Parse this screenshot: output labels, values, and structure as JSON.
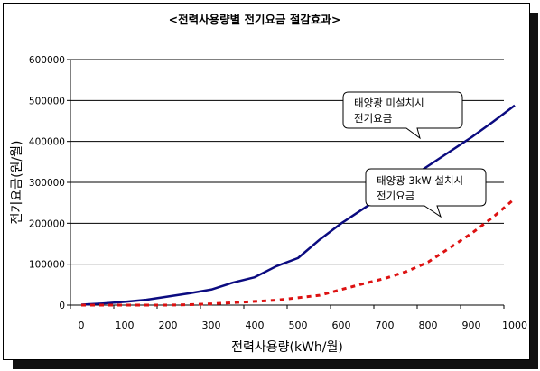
{
  "chart_data": {
    "type": "line",
    "title": "<전력사용량별 전기요금 절감효과>",
    "xlabel": "전력사용량(kWh/월)",
    "ylabel": "전기요금(원/월)",
    "xlim": [
      0,
      1000
    ],
    "ylim": [
      0,
      600000
    ],
    "x_ticks": [
      "0",
      "100",
      "200",
      "300",
      "400",
      "500",
      "600",
      "700",
      "800",
      "900",
      "1000"
    ],
    "y_ticks": [
      "0",
      "100000",
      "200000",
      "300000",
      "400000",
      "500000",
      "600000"
    ],
    "grid": "horizontal",
    "series": [
      {
        "name": "태양광 미설치시 전기요금",
        "color": "#0b0b80",
        "style": "solid",
        "x": [
          0,
          50,
          100,
          150,
          200,
          250,
          300,
          350,
          400,
          450,
          500,
          550,
          600,
          650,
          700,
          750,
          800,
          850,
          900,
          950,
          1000
        ],
        "y": [
          1000,
          4000,
          8000,
          13000,
          21000,
          29000,
          38000,
          55000,
          68000,
          95000,
          115000,
          160000,
          200000,
          235000,
          270000,
          305000,
          340000,
          375000,
          410000,
          448000,
          488000
        ]
      },
      {
        "name": "태양광 3kW 설치시 전기요금",
        "color": "#dd1111",
        "style": "dashed",
        "x": [
          0,
          50,
          100,
          150,
          200,
          250,
          300,
          350,
          400,
          450,
          500,
          550,
          600,
          650,
          700,
          750,
          800,
          850,
          900,
          950,
          1000
        ],
        "y": [
          0,
          0,
          0,
          0,
          0,
          1000,
          3000,
          6000,
          9000,
          12000,
          18000,
          24000,
          38000,
          52000,
          65000,
          82000,
          105000,
          140000,
          175000,
          215000,
          260000
        ]
      }
    ],
    "annotations": [
      {
        "line1": "태양광 미설치시",
        "line2": "전기요금"
      },
      {
        "line1": "태양광 3kW 설치시",
        "line2": "전기요금"
      }
    ]
  }
}
